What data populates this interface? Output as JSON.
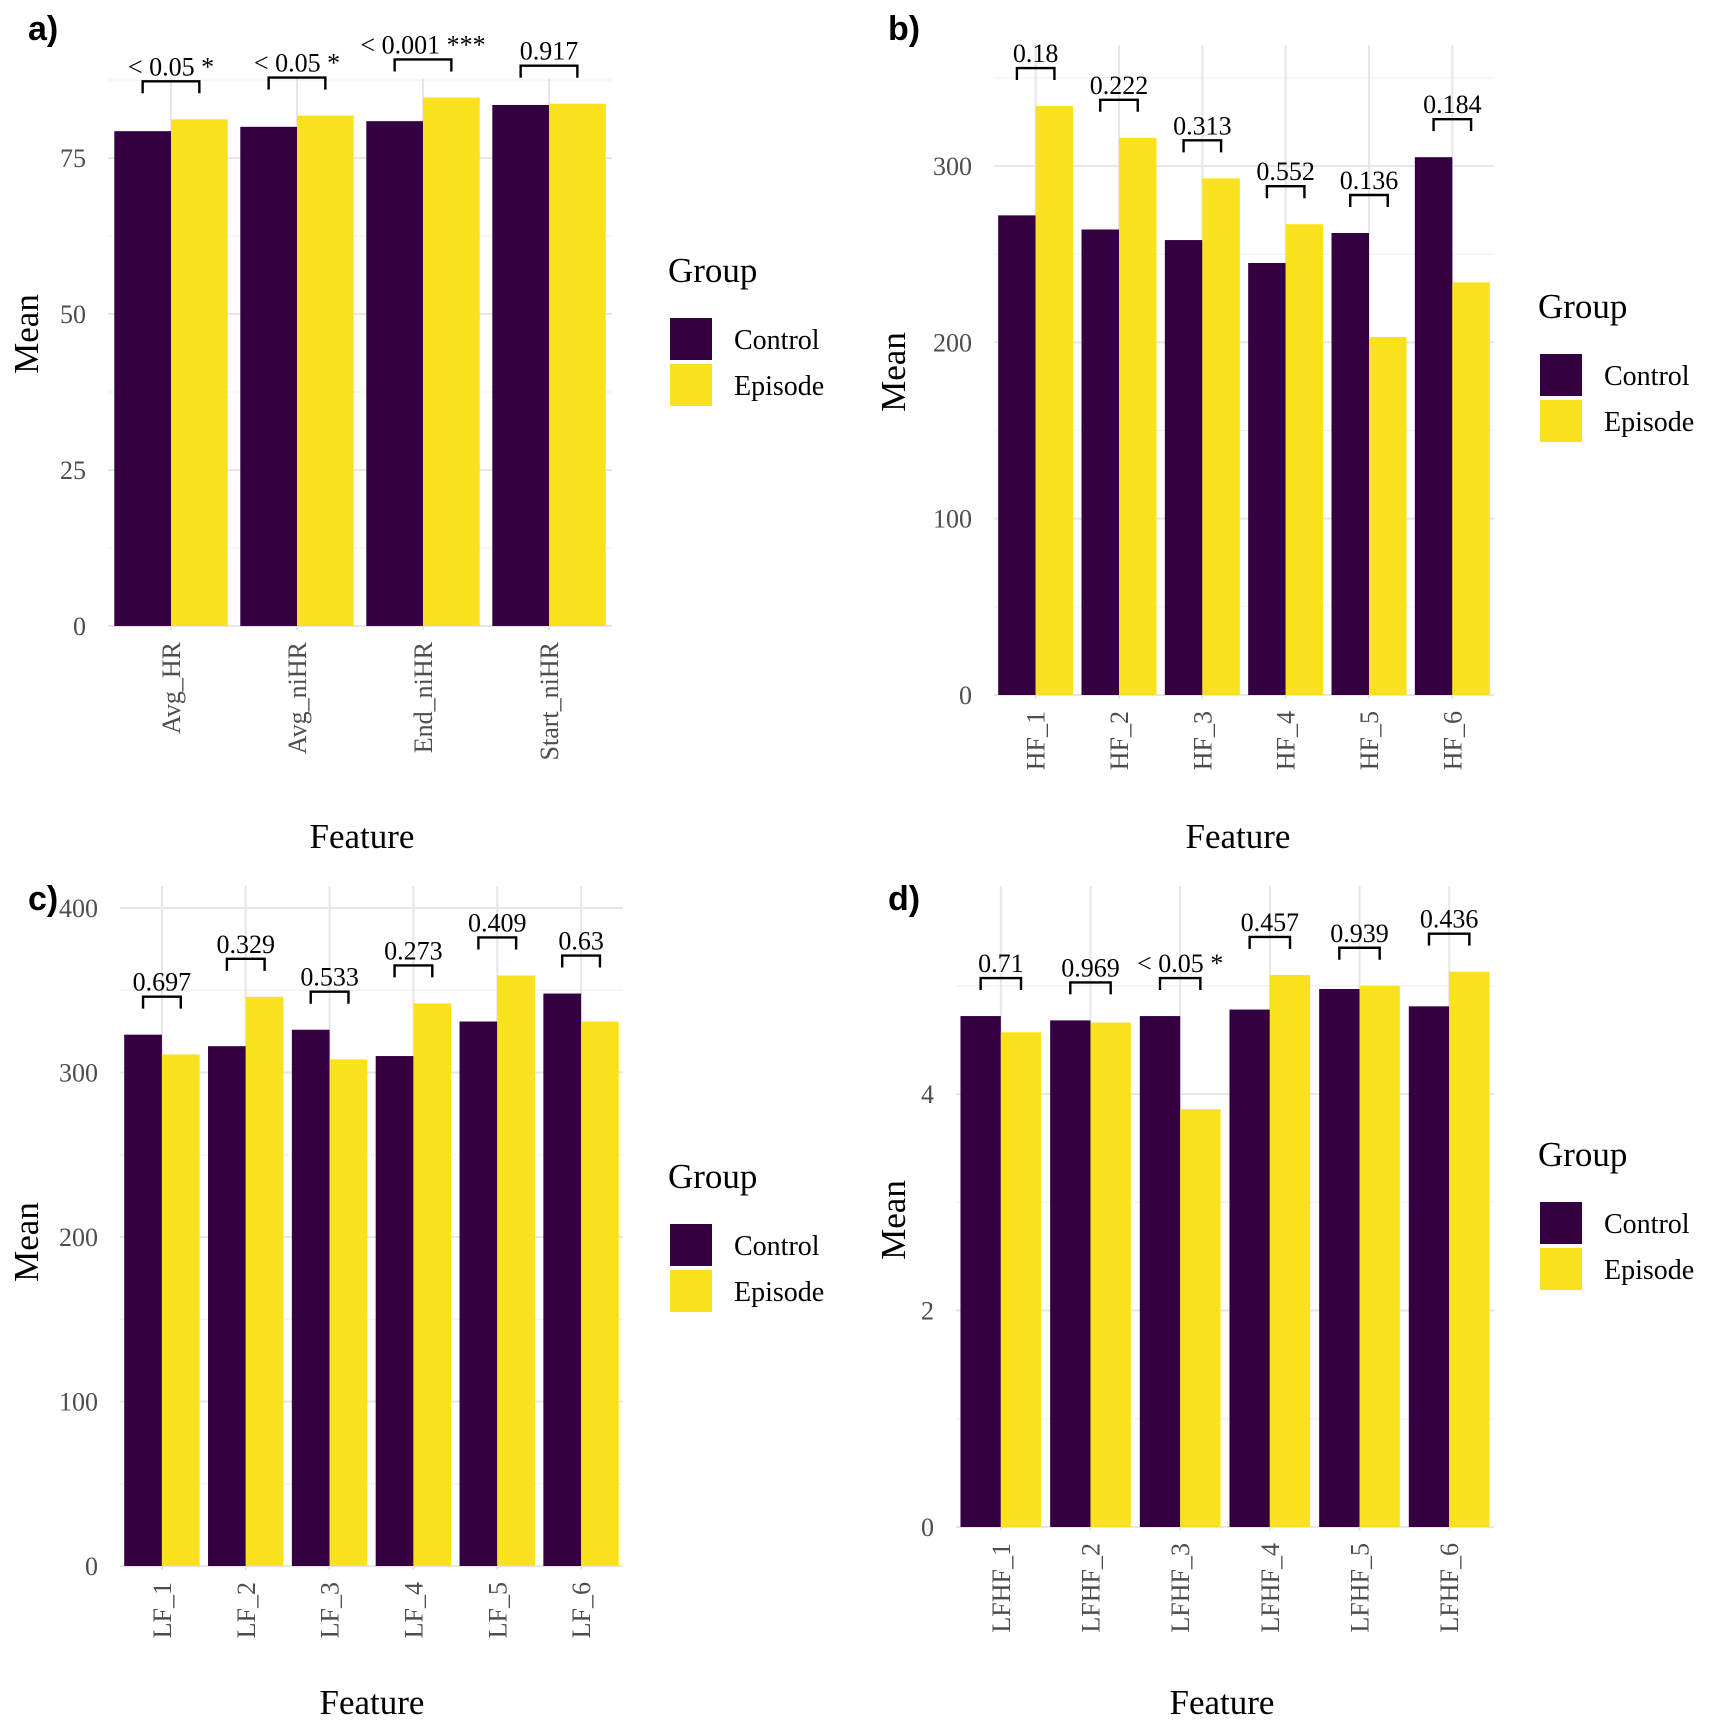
{
  "colors": {
    "control": "#340042",
    "episode": "#f9e21d"
  },
  "chart_data": [
    {
      "panel": "a)",
      "type": "bar",
      "xlabel": "Feature",
      "ylabel": "Mean",
      "legend_title": "Group",
      "legend_position": "right",
      "grid": true,
      "ylim": [
        0,
        88
      ],
      "yticks": [
        0,
        25,
        50,
        75
      ],
      "categories": [
        "Avg_HR",
        "Avg_niHR",
        "End_niHR",
        "Start_niHR"
      ],
      "series": [
        {
          "name": "Control",
          "values": [
            79.3,
            80.0,
            80.9,
            83.5
          ]
        },
        {
          "name": "Episode",
          "values": [
            81.2,
            81.8,
            84.7,
            83.7
          ]
        }
      ],
      "annotations": [
        "< 0.05 *",
        "< 0.05 *",
        "< 0.001 ***",
        "0.917"
      ]
    },
    {
      "panel": "b)",
      "type": "bar",
      "xlabel": "Feature",
      "ylabel": "Mean",
      "legend_title": "Group",
      "legend_position": "right",
      "grid": true,
      "ylim": [
        0,
        365
      ],
      "yticks": [
        0,
        100,
        200,
        300
      ],
      "categories": [
        "HF_1",
        "HF_2",
        "HF_3",
        "HF_4",
        "HF_5",
        "HF_6"
      ],
      "series": [
        {
          "name": "Control",
          "values": [
            272,
            264,
            258,
            245,
            262,
            305
          ]
        },
        {
          "name": "Episode",
          "values": [
            334,
            316,
            293,
            267,
            203,
            234
          ]
        }
      ],
      "annotations": [
        "0.18",
        "0.222",
        "0.313",
        "0.552",
        "0.136",
        "0.184"
      ]
    },
    {
      "panel": "c)",
      "type": "bar",
      "xlabel": "Feature",
      "ylabel": "Mean",
      "legend_title": "Group",
      "legend_position": "right",
      "grid": true,
      "ylim": [
        0,
        405
      ],
      "yticks": [
        0,
        100,
        200,
        300,
        400
      ],
      "categories": [
        "LF_1",
        "LF_2",
        "LF_3",
        "LF_4",
        "LF_5",
        "LF_6"
      ],
      "series": [
        {
          "name": "Control",
          "values": [
            323,
            316,
            326,
            310,
            331,
            348
          ]
        },
        {
          "name": "Episode",
          "values": [
            311,
            346,
            308,
            342,
            359,
            331
          ]
        }
      ],
      "annotations": [
        "0.697",
        "0.329",
        "0.533",
        "0.273",
        "0.409",
        "0.63"
      ]
    },
    {
      "panel": "d)",
      "type": "bar",
      "xlabel": "Feature",
      "ylabel": "Mean",
      "legend_title": "Group",
      "legend_position": "right",
      "grid": true,
      "ylim": [
        0,
        5.65
      ],
      "yticks": [
        0,
        2,
        4
      ],
      "categories": [
        "LFHF_1",
        "LFHF_2",
        "LFHF_3",
        "LFHF_4",
        "LFHF_5",
        "LFHF_6"
      ],
      "series": [
        {
          "name": "Control",
          "values": [
            4.72,
            4.68,
            4.72,
            4.78,
            4.97,
            4.81
          ]
        },
        {
          "name": "Episode",
          "values": [
            4.57,
            4.66,
            3.86,
            5.1,
            5.0,
            5.13
          ]
        }
      ],
      "annotations": [
        "0.71",
        "0.969",
        "< 0.05 *",
        "0.457",
        "0.939",
        "0.436"
      ]
    }
  ]
}
